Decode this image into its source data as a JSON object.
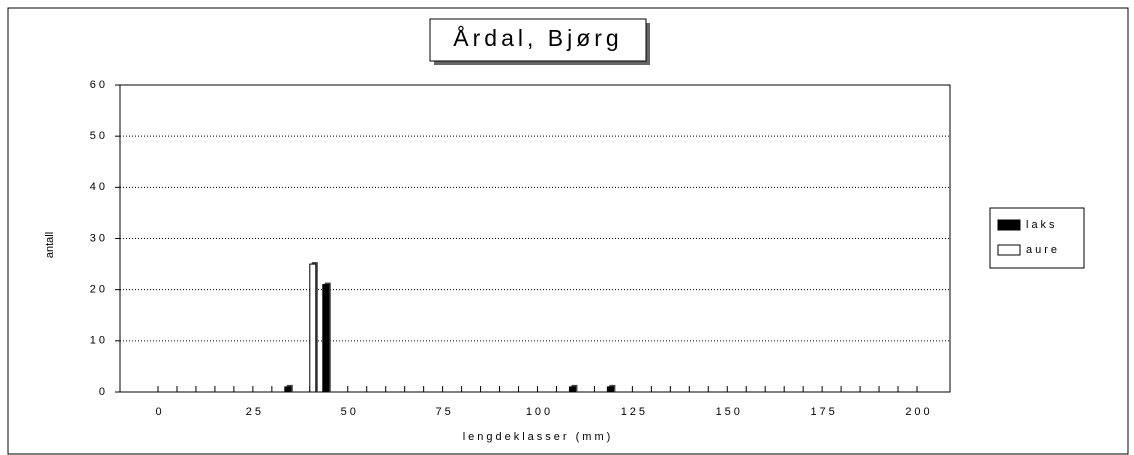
{
  "chart_data": {
    "type": "bar",
    "title": "Årdal, Bjørg",
    "x_label": "lengdeklasser (mm)",
    "y_label": "antall",
    "categories": [
      "0",
      null,
      null,
      null,
      null,
      "25",
      null,
      null,
      null,
      null,
      "50",
      null,
      null,
      null,
      null,
      "75",
      null,
      null,
      null,
      null,
      "100",
      null,
      null,
      null,
      null,
      "125",
      null,
      null,
      null,
      null,
      "150",
      null,
      null,
      null,
      null,
      "175",
      null,
      null,
      null,
      null,
      "200"
    ],
    "series": [
      {
        "name": "laks",
        "color": "#000000",
        "values": [
          0,
          0,
          0,
          0,
          0,
          0,
          0,
          1,
          0,
          21,
          0,
          0,
          0,
          0,
          0,
          0,
          0,
          0,
          0,
          0,
          0,
          0,
          1,
          0,
          1,
          0,
          0,
          0,
          0,
          0,
          0,
          0,
          0,
          0,
          0,
          0,
          0,
          0,
          0,
          0,
          0
        ]
      },
      {
        "name": "aure",
        "color": "#ffffff",
        "values": [
          0,
          0,
          0,
          0,
          0,
          0,
          0,
          0,
          25,
          0,
          0,
          0,
          0,
          0,
          0,
          0,
          0,
          0,
          0,
          0,
          0,
          0,
          0,
          0,
          0,
          0,
          0,
          0,
          0,
          0,
          0,
          0,
          0,
          0,
          0,
          0,
          0,
          0,
          0,
          0,
          0
        ]
      }
    ],
    "ylim": [
      0,
      60
    ],
    "yticks": [
      0,
      10,
      20,
      30,
      40,
      50,
      60
    ],
    "grid": true,
    "legend": "right"
  }
}
